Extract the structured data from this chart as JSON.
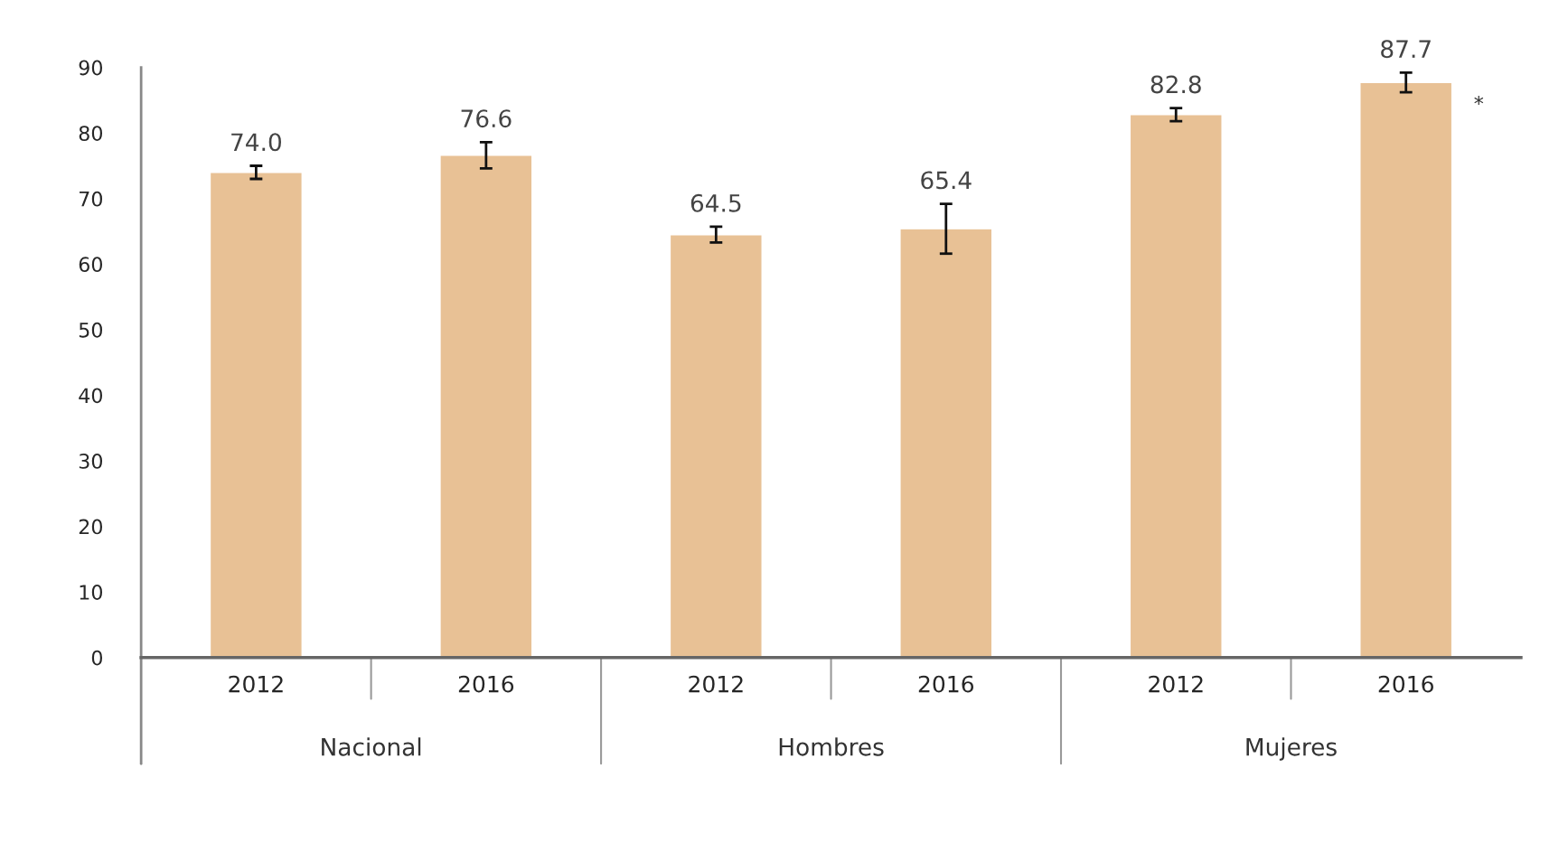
{
  "chart_data": {
    "type": "bar",
    "categories": [
      "2012",
      "2016",
      "2012",
      "2016",
      "2012",
      "2016"
    ],
    "values": [
      74.0,
      76.6,
      64.5,
      65.4,
      82.8,
      87.7
    ],
    "errors": [
      1.0,
      2.0,
      1.2,
      3.8,
      1.0,
      1.5
    ],
    "color": "#e8c195",
    "ylim": [
      0,
      90
    ],
    "yticks": [
      0,
      10,
      20,
      30,
      40,
      50,
      60,
      70,
      80,
      90
    ],
    "grid": false,
    "value_labels": [
      "74.0",
      "76.6",
      "64.5",
      "65.4",
      "82.8",
      "87.7"
    ],
    "annotations": [
      "Nacional",
      "Hombres",
      "Mujeres",
      "*"
    ]
  }
}
